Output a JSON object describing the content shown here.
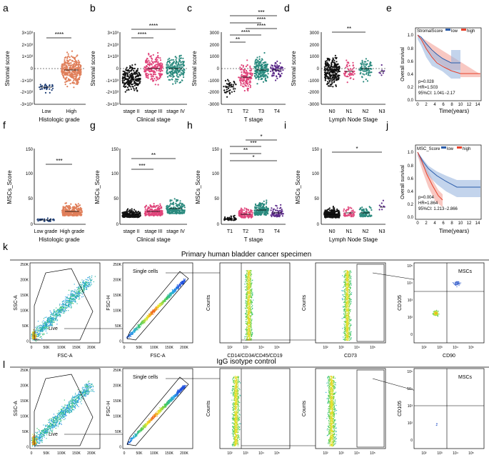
{
  "panels": {
    "a": {
      "letter": "a",
      "ylabel": "Stromal score",
      "xlabel": "Histologic grade",
      "ticks": [
        "3×10³",
        "2×10³",
        "1×10³",
        "0",
        "-1×10³",
        "-2×10³",
        "-3×10³"
      ],
      "cats": [
        "Low",
        "High"
      ],
      "sig": [
        "****"
      ]
    },
    "b": {
      "letter": "b",
      "ylabel": "Stromal score",
      "xlabel": "Clinical stage",
      "ticks": [
        "3×10³",
        "2×10³",
        "1×10³",
        "0",
        "-1×10³",
        "-2×10³",
        "-3×10³"
      ],
      "cats": [
        "stage II",
        "stage III",
        "stage IV"
      ],
      "sig": [
        "****",
        "****"
      ]
    },
    "c": {
      "letter": "c",
      "ylabel": "Stromal score",
      "xlabel": "T stage",
      "ticks": [
        "3000",
        "2000",
        "1000",
        "0",
        "-1000",
        "-2000",
        "-3000"
      ],
      "cats": [
        "T1",
        "T2",
        "T3",
        "T4"
      ],
      "sig": [
        "***",
        "****",
        "****",
        "****",
        "**"
      ]
    },
    "d": {
      "letter": "d",
      "ylabel": "Stromal score",
      "xlabel": "Lymph Node Stage",
      "ticks": [
        "3000",
        "2000",
        "1000",
        "0",
        "-1000",
        "-2000",
        "-3000"
      ],
      "cats": [
        "N0",
        "N1",
        "N2",
        "N3"
      ],
      "sig": [
        "**"
      ]
    },
    "e": {
      "letter": "e",
      "ylabel": "Overall survival",
      "xlabel": "Time(years)",
      "title": "StromalScore",
      "legend_low": "low",
      "legend_high": "high",
      "ticks_y": [
        "1.0",
        "0.8",
        "0.6",
        "0.4",
        "0.2",
        "0.0"
      ],
      "ticks_x": [
        "0",
        "2",
        "4",
        "6",
        "8",
        "10",
        "12",
        "14"
      ],
      "stats": [
        "p=0.028",
        "HR=1.503",
        "95%CI: 1.041−2.17"
      ]
    },
    "f": {
      "letter": "f",
      "ylabel": "MSCs_Score",
      "xlabel": "Histologic grade",
      "ticks": [
        "150",
        "100",
        "50",
        "0"
      ],
      "cats": [
        "Low grade",
        "High grade"
      ],
      "sig": [
        "***"
      ]
    },
    "g": {
      "letter": "g",
      "ylabel": "MSCs_Score",
      "xlabel": "Clinical stage",
      "ticks": [
        "150",
        "100",
        "50",
        "0"
      ],
      "cats": [
        "stage II",
        "stage III",
        "stage IV"
      ],
      "sig": [
        "**",
        "***"
      ]
    },
    "h": {
      "letter": "h",
      "ylabel": "MSCs_Score",
      "xlabel": "T stage",
      "ticks": [
        "150",
        "100",
        "50",
        "0"
      ],
      "cats": [
        "T1",
        "T2",
        "T3",
        "T4"
      ],
      "sig": [
        "*",
        "***",
        "**",
        "*"
      ]
    },
    "i": {
      "letter": "i",
      "ylabel": "MSCs_Score",
      "xlabel": "Lymph Node Stage",
      "ticks": [
        "150",
        "100",
        "50",
        "0"
      ],
      "cats": [
        "N0",
        "N1",
        "N2",
        "N3"
      ],
      "sig": [
        "*"
      ]
    },
    "j": {
      "letter": "j",
      "ylabel": "Overall survival",
      "xlabel": "Time(years)",
      "title": "MSC_Score",
      "legend_low": "low",
      "legend_high": "high",
      "ticks_y": [
        "1.0",
        "0.8",
        "0.6",
        "0.4",
        "0.2",
        "0.0"
      ],
      "ticks_x": [
        "0",
        "2",
        "4",
        "6",
        "8",
        "10",
        "12",
        "14"
      ],
      "stats": [
        "p=0.004",
        "HR=1.864",
        "95%CI: 1.213−2.866"
      ]
    }
  },
  "flow": {
    "k": {
      "letter": "k",
      "title": "Primary human bladder cancer specimen"
    },
    "l": {
      "letter": "l",
      "title": "IgG isotype control"
    },
    "labels": {
      "ssc": "SSC-A",
      "fsc": "FSC-A",
      "fsch": "FSC-H",
      "counts": "Counts",
      "lin": "CD14/CD34/CD45/CD19",
      "cd73": "CD73",
      "cd105": "CD105",
      "cd90": "CD90",
      "live": "Live",
      "single": "Single cells",
      "mscs": "MSCs"
    },
    "lin_ticks": [
      "250K",
      "200K",
      "150K",
      "100K",
      "50K",
      "0"
    ],
    "fsc_ticks": [
      "0",
      "50K",
      "100K",
      "150K",
      "200K"
    ],
    "log_ticks": [
      "10²",
      "10³",
      "10⁴",
      "10⁵"
    ],
    "log_ticks_y": [
      "10⁵",
      "10⁴",
      "10³",
      "10²",
      "0"
    ]
  },
  "colors": {
    "low": "#2a5caa",
    "high": "#e8412b",
    "teal": "#2a8a7e",
    "pink": "#e0457b",
    "orange": "#e07f5a",
    "purple": "#5c2a8a",
    "black": "#111111",
    "navy": "#1f3f77"
  }
}
